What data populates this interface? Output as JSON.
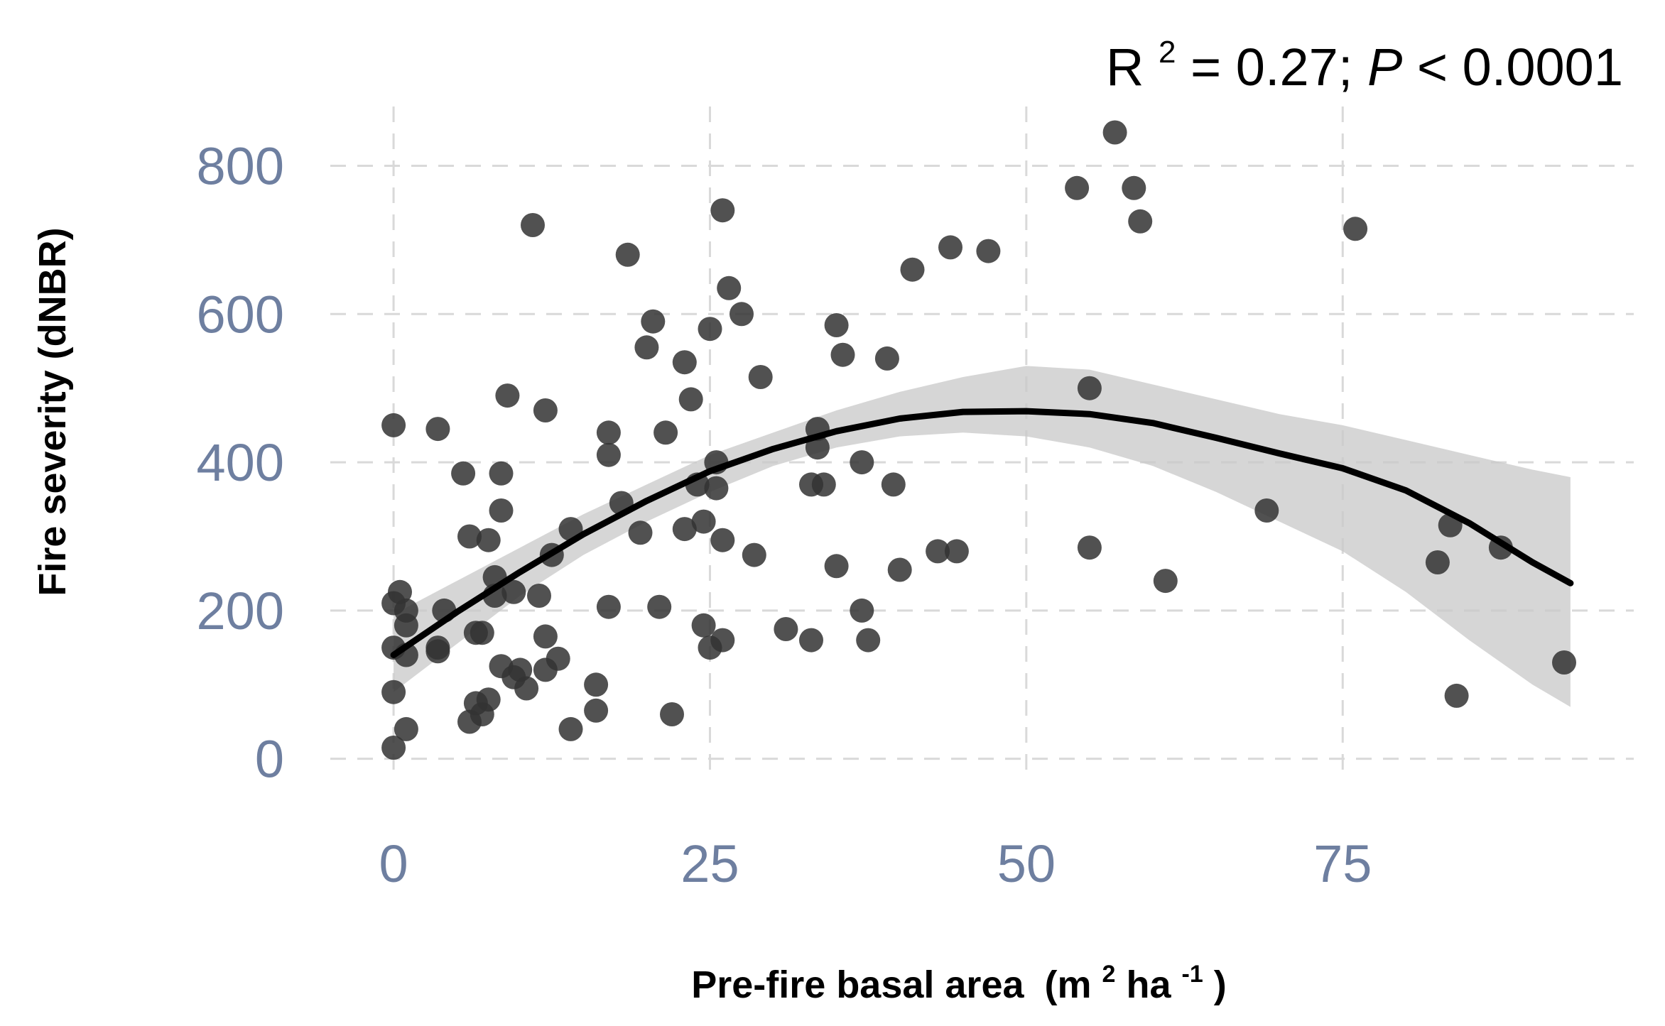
{
  "chart_data": {
    "type": "scatter",
    "title": "",
    "xlabel": "Pre-fire basal area",
    "xlabel_unit_open": "(m",
    "xlabel_unit_sup1": "2",
    "xlabel_unit_mid": " ha",
    "xlabel_unit_sup2": "-1",
    "xlabel_unit_close": ")",
    "ylabel": "Fire severity (dNBR)",
    "stat_r": "R",
    "stat_r_sup": "2",
    "stat_main": "= 0.27; ",
    "stat_p": "P",
    "stat_tail": " < 0.0001",
    "xlim": [
      -5,
      98
    ],
    "ylim": [
      -30,
      880
    ],
    "x_ticks": [
      0,
      25,
      50,
      75
    ],
    "y_ticks": [
      0,
      200,
      400,
      600,
      800
    ],
    "x_tick_labels": [
      "0",
      "25",
      "50",
      "75"
    ],
    "y_tick_labels": [
      "0",
      "200",
      "400",
      "600",
      "800"
    ],
    "grid": true,
    "legend": "none",
    "colors": {
      "points": "#333333",
      "fit": "#000000",
      "ci": "#c8c8c8",
      "tick_text": "#6e7fa0",
      "grid": "#d9d9d9"
    },
    "points": [
      [
        0,
        15
      ],
      [
        0,
        90
      ],
      [
        0,
        150
      ],
      [
        0,
        210
      ],
      [
        0,
        450
      ],
      [
        0.5,
        225
      ],
      [
        1,
        40
      ],
      [
        1,
        140
      ],
      [
        1,
        180
      ],
      [
        1,
        200
      ],
      [
        3.5,
        445
      ],
      [
        3.5,
        145
      ],
      [
        3.5,
        150
      ],
      [
        4,
        200
      ],
      [
        5.5,
        385
      ],
      [
        6,
        300
      ],
      [
        6,
        50
      ],
      [
        6.5,
        170
      ],
      [
        6.5,
        75
      ],
      [
        7,
        170
      ],
      [
        7,
        60
      ],
      [
        7.5,
        80
      ],
      [
        7.5,
        295
      ],
      [
        8,
        220
      ],
      [
        8,
        245
      ],
      [
        8.5,
        385
      ],
      [
        8.5,
        335
      ],
      [
        8.5,
        125
      ],
      [
        9,
        490
      ],
      [
        9.5,
        225
      ],
      [
        9.5,
        110
      ],
      [
        10,
        120
      ],
      [
        10.5,
        95
      ],
      [
        11,
        720
      ],
      [
        11.5,
        220
      ],
      [
        12,
        470
      ],
      [
        12,
        165
      ],
      [
        12,
        120
      ],
      [
        12.5,
        275
      ],
      [
        13,
        135
      ],
      [
        14,
        40
      ],
      [
        14,
        310
      ],
      [
        16,
        100
      ],
      [
        16,
        65
      ],
      [
        17,
        410
      ],
      [
        17,
        440
      ],
      [
        17,
        205
      ],
      [
        18,
        345
      ],
      [
        18.5,
        680
      ],
      [
        19.5,
        305
      ],
      [
        20,
        555
      ],
      [
        20.5,
        590
      ],
      [
        21,
        205
      ],
      [
        21.5,
        440
      ],
      [
        22,
        60
      ],
      [
        23,
        535
      ],
      [
        23,
        310
      ],
      [
        23.5,
        485
      ],
      [
        24,
        370
      ],
      [
        24.5,
        320
      ],
      [
        24.5,
        180
      ],
      [
        25,
        150
      ],
      [
        25,
        580
      ],
      [
        25.5,
        400
      ],
      [
        25.5,
        365
      ],
      [
        26,
        740
      ],
      [
        26,
        295
      ],
      [
        26,
        160
      ],
      [
        26.5,
        635
      ],
      [
        27.5,
        600
      ],
      [
        28.5,
        275
      ],
      [
        29,
        515
      ],
      [
        31,
        175
      ],
      [
        33,
        160
      ],
      [
        33,
        370
      ],
      [
        33.5,
        445
      ],
      [
        33.5,
        420
      ],
      [
        34,
        370
      ],
      [
        35,
        585
      ],
      [
        35,
        260
      ],
      [
        35.5,
        545
      ],
      [
        37,
        400
      ],
      [
        37,
        200
      ],
      [
        37.5,
        160
      ],
      [
        39,
        540
      ],
      [
        39.5,
        370
      ],
      [
        40,
        255
      ],
      [
        41,
        660
      ],
      [
        43,
        280
      ],
      [
        44,
        690
      ],
      [
        44.5,
        280
      ],
      [
        47,
        685
      ],
      [
        54,
        770
      ],
      [
        55,
        500
      ],
      [
        55,
        285
      ],
      [
        57,
        845
      ],
      [
        58.5,
        770
      ],
      [
        59,
        725
      ],
      [
        61,
        240
      ],
      [
        69,
        335
      ],
      [
        76,
        715
      ],
      [
        82.5,
        265
      ],
      [
        83.5,
        315
      ],
      [
        84,
        85
      ],
      [
        87.5,
        285
      ],
      [
        92.5,
        130
      ]
    ],
    "fit": {
      "x": [
        0,
        5,
        10,
        15,
        20,
        25,
        30,
        35,
        40,
        45,
        50,
        55,
        60,
        65,
        70,
        75,
        80,
        85,
        90,
        93
      ],
      "y": [
        140,
        198,
        252,
        303,
        348,
        388,
        418,
        442,
        459,
        468,
        469,
        465,
        453,
        433,
        412,
        392,
        362,
        318,
        265,
        237
      ]
    },
    "ci": {
      "x": [
        0,
        5,
        10,
        15,
        20,
        25,
        30,
        35,
        40,
        45,
        50,
        55,
        60,
        65,
        70,
        75,
        80,
        85,
        90,
        93
      ],
      "lower": [
        90,
        155,
        220,
        275,
        320,
        360,
        395,
        420,
        435,
        440,
        435,
        420,
        395,
        360,
        320,
        280,
        225,
        160,
        100,
        70
      ],
      "upper": [
        195,
        240,
        285,
        330,
        370,
        410,
        440,
        470,
        495,
        515,
        530,
        525,
        505,
        485,
        465,
        450,
        430,
        410,
        390,
        380
      ]
    }
  }
}
